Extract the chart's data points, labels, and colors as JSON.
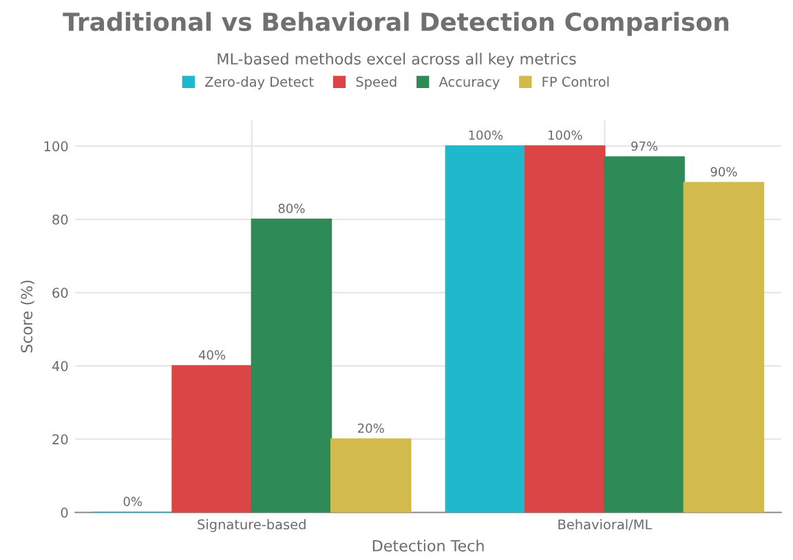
{
  "chart_data": {
    "type": "bar",
    "title": "Traditional vs Behavioral Detection Comparison",
    "subtitle": "ML-based methods excel across all key metrics",
    "xlabel": "Detection Tech",
    "ylabel": "Score (%)",
    "categories": [
      "Signature-based",
      "Behavioral/ML"
    ],
    "series": [
      {
        "name": "Zero-day Detect",
        "color": "#1fb8cd",
        "values": [
          0,
          100
        ],
        "value_labels": [
          "0%",
          "100%"
        ]
      },
      {
        "name": "Speed",
        "color": "#db4545",
        "values": [
          40,
          100
        ],
        "value_labels": [
          "40%",
          "100%"
        ]
      },
      {
        "name": "Accuracy",
        "color": "#2e8b57",
        "values": [
          80,
          97
        ],
        "value_labels": [
          "80%",
          "97%"
        ]
      },
      {
        "name": "FP Control",
        "color": "#d2ba4c",
        "values": [
          20,
          90
        ],
        "value_labels": [
          "20%",
          "90%"
        ]
      }
    ],
    "ylim": [
      0,
      107
    ],
    "yticks": [
      0,
      20,
      40,
      60,
      80,
      100
    ],
    "grid": true,
    "legend": "top"
  }
}
